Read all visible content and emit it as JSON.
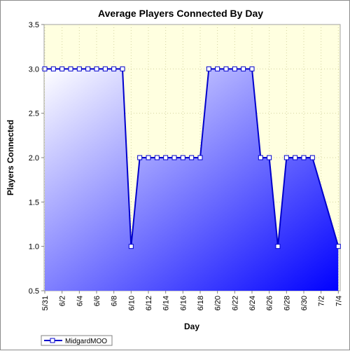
{
  "chart_data": {
    "type": "area",
    "title": "Average Players Connected By Day",
    "xlabel": "Day",
    "ylabel": "Players Connected",
    "ylim": [
      0.5,
      3.5
    ],
    "yticks": [
      "0.5",
      "1.0",
      "1.5",
      "2.0",
      "2.5",
      "3.0",
      "3.5"
    ],
    "xticks": [
      "5/31",
      "6/2",
      "6/4",
      "6/6",
      "6/8",
      "6/10",
      "6/12",
      "6/14",
      "6/16",
      "6/18",
      "6/20",
      "6/22",
      "6/24",
      "6/26",
      "6/28",
      "6/30",
      "7/2",
      "7/4"
    ],
    "grid": true,
    "legend_position": "bottom-left",
    "colors": {
      "plot_background": "#ffffe0",
      "line": "#0000cc",
      "fill_light": "#ffffff",
      "fill_dark": "#0000ff",
      "marker_fill": "#ffffff"
    },
    "series": [
      {
        "name": "MidgardMOO",
        "x": [
          "5/31",
          "6/1",
          "6/2",
          "6/3",
          "6/4",
          "6/5",
          "6/6",
          "6/7",
          "6/8",
          "6/9",
          "6/10",
          "6/11",
          "6/12",
          "6/13",
          "6/14",
          "6/15",
          "6/16",
          "6/17",
          "6/18",
          "6/19",
          "6/20",
          "6/21",
          "6/22",
          "6/23",
          "6/24",
          "6/25",
          "6/26",
          "6/27",
          "6/28",
          "6/29",
          "6/30",
          "7/1",
          "7/4"
        ],
        "values": [
          3,
          3,
          3,
          3,
          3,
          3,
          3,
          3,
          3,
          3,
          1,
          2,
          2,
          2,
          2,
          2,
          2,
          2,
          2,
          3,
          3,
          3,
          3,
          3,
          3,
          2,
          2,
          1,
          2,
          2,
          2,
          2,
          1
        ]
      }
    ]
  }
}
